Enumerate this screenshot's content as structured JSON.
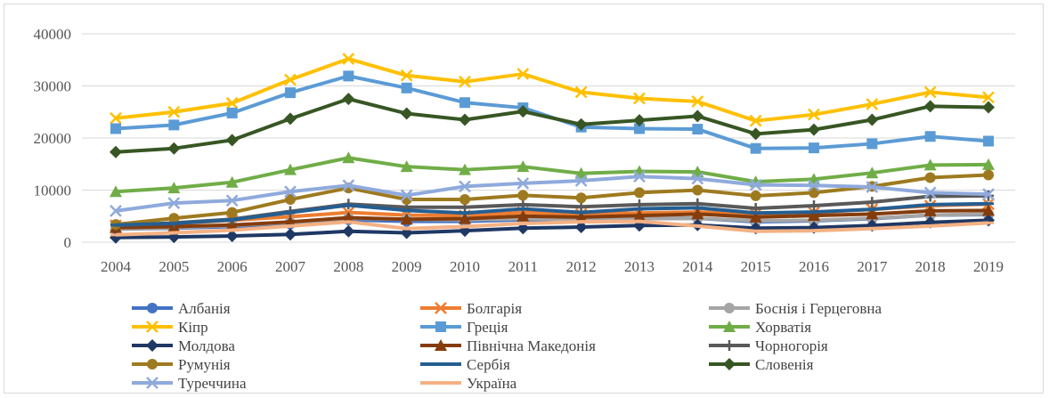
{
  "chart_data": {
    "type": "line",
    "title": "",
    "xlabel": "",
    "ylabel": "",
    "ylim": [
      0,
      40000
    ],
    "yticks": [
      0,
      10000,
      20000,
      30000,
      40000
    ],
    "grid": true,
    "legend_position": "bottom",
    "categories": [
      "2004",
      "2005",
      "2006",
      "2007",
      "2008",
      "2009",
      "2010",
      "2011",
      "2012",
      "2013",
      "2014",
      "2015",
      "2016",
      "2017",
      "2018",
      "2019"
    ],
    "series": [
      {
        "name": "Албанія",
        "color": "#4472c4",
        "marker": "circle",
        "values": [
          2500,
          2700,
          3000,
          3500,
          4300,
          4000,
          4000,
          4300,
          4300,
          4500,
          4600,
          3900,
          4100,
          4500,
          5200,
          5300
        ]
      },
      {
        "name": "Болгарія",
        "color": "#ed7d31",
        "marker": "x",
        "values": [
          3200,
          3600,
          4200,
          4900,
          5700,
          5200,
          5100,
          5700,
          5400,
          5600,
          5800,
          5400,
          5700,
          6300,
          7000,
          7300
        ]
      },
      {
        "name": "Боснія і Герцеговна",
        "color": "#a5a5a5",
        "marker": "circle",
        "values": [
          2500,
          2800,
          3200,
          3800,
          4600,
          4400,
          4300,
          4500,
          4400,
          4500,
          4600,
          4100,
          4200,
          4600,
          5200,
          5400
        ]
      },
      {
        "name": "Кіпр",
        "color": "#ffc000",
        "marker": "x",
        "values": [
          23800,
          25000,
          26700,
          31200,
          35200,
          32000,
          30800,
          32300,
          28800,
          27600,
          27000,
          23300,
          24500,
          26500,
          28800,
          27800
        ]
      },
      {
        "name": "Греція",
        "color": "#5b9bd5",
        "marker": "square",
        "values": [
          21800,
          22500,
          24800,
          28700,
          31900,
          29600,
          26800,
          25800,
          22100,
          21800,
          21700,
          18000,
          18100,
          18900,
          20300,
          19400
        ]
      },
      {
        "name": "Хорватія",
        "color": "#70ad47",
        "marker": "triangle",
        "values": [
          9700,
          10400,
          11500,
          13900,
          16200,
          14500,
          13900,
          14500,
          13200,
          13600,
          13500,
          11600,
          12100,
          13300,
          14800,
          14900
        ]
      },
      {
        "name": "Молдова",
        "color": "#1f3864",
        "marker": "diamond",
        "values": [
          900,
          1000,
          1200,
          1500,
          2100,
          1800,
          2200,
          2700,
          2900,
          3200,
          3300,
          2700,
          2800,
          3200,
          3800,
          4200
        ]
      },
      {
        "name": "Північна Македонія",
        "color": "#843c0c",
        "marker": "triangle",
        "values": [
          2800,
          3000,
          3300,
          3900,
          4700,
          4400,
          4500,
          5000,
          4800,
          5100,
          5400,
          4800,
          5100,
          5400,
          6000,
          6100
        ]
      },
      {
        "name": "Чорногорія",
        "color": "#595959",
        "marker": "plus",
        "values": [
          3200,
          3700,
          4400,
          5900,
          7300,
          6700,
          6700,
          7200,
          6800,
          7200,
          7400,
          6500,
          7000,
          7700,
          8800,
          8900
        ]
      },
      {
        "name": "Румунія",
        "color": "#9e7a1f",
        "marker": "circle",
        "values": [
          3400,
          4600,
          5700,
          8200,
          10400,
          8200,
          8200,
          9000,
          8500,
          9500,
          10000,
          8900,
          9500,
          10700,
          12400,
          12900
        ]
      },
      {
        "name": "Сербія",
        "color": "#255e91",
        "marker": "dash",
        "values": [
          3300,
          3600,
          4300,
          5700,
          7100,
          6100,
          5600,
          6400,
          5700,
          6400,
          6600,
          5600,
          5800,
          6300,
          7200,
          7400
        ]
      },
      {
        "name": "Словенія",
        "color": "#375623",
        "marker": "diamond",
        "values": [
          17300,
          18000,
          19600,
          23700,
          27500,
          24700,
          23500,
          25100,
          22600,
          23400,
          24200,
          20800,
          21600,
          23500,
          26100,
          25900
        ]
      },
      {
        "name": "Туреччина",
        "color": "#8faadc",
        "marker": "x",
        "values": [
          6000,
          7500,
          8000,
          9700,
          10900,
          9000,
          10700,
          11300,
          11800,
          12600,
          12200,
          11000,
          10900,
          10600,
          9500,
          9200
        ]
      },
      {
        "name": "Україна",
        "color": "#f4b183",
        "marker": "dash",
        "values": [
          1400,
          1800,
          2300,
          3100,
          3900,
          2600,
          3000,
          3600,
          3900,
          4000,
          3100,
          2100,
          2200,
          2600,
          3100,
          3700
        ]
      }
    ]
  }
}
